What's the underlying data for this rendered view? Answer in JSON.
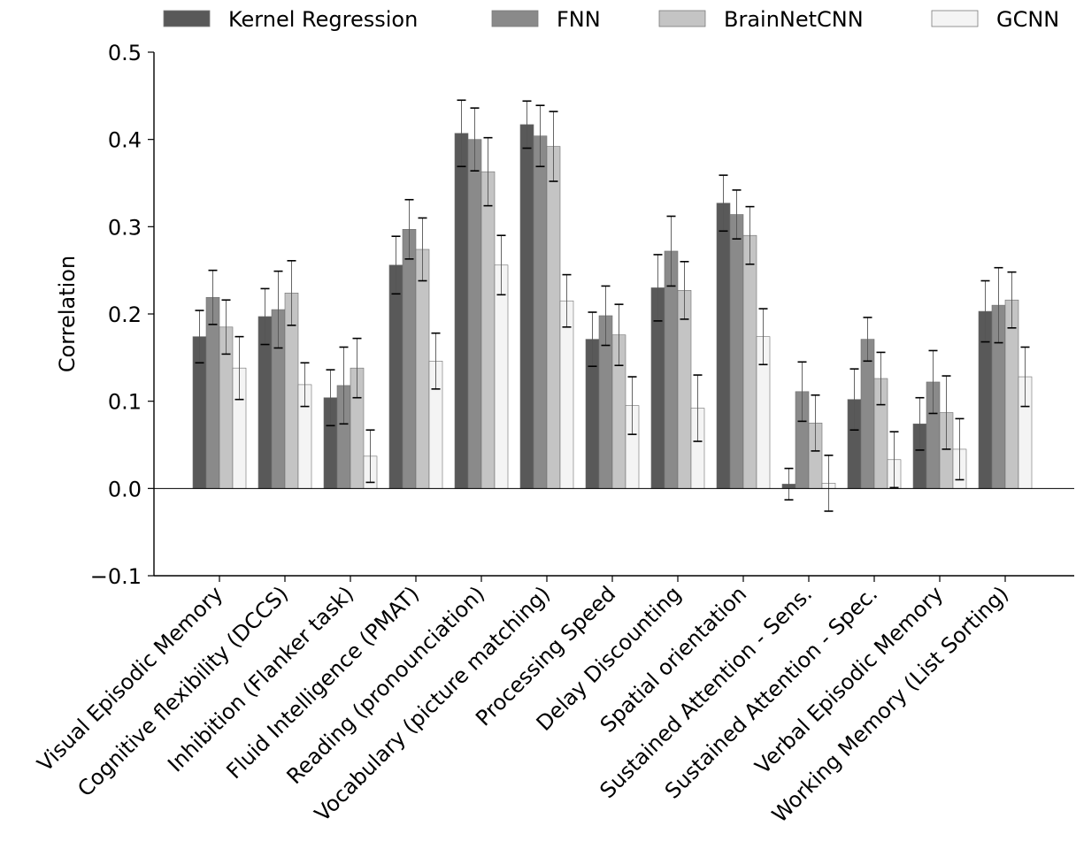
{
  "chart_data": {
    "type": "bar",
    "title": "",
    "xlabel": "",
    "ylabel": "Correlation",
    "ylim": [
      -0.1,
      0.5
    ],
    "yticks": [
      -0.1,
      0.0,
      0.1,
      0.2,
      0.3,
      0.4,
      0.5
    ],
    "ytick_labels": [
      "−0.1",
      "0.0",
      "0.1",
      "0.2",
      "0.3",
      "0.4",
      "0.5"
    ],
    "grid": false,
    "legend_position": "top",
    "categories": [
      "Visual Episodic Memory",
      "Cognitive flexibility (DCCS)",
      "Inhibition (Flanker task)",
      "Fluid Intelligence (PMAT)",
      "Reading (pronounciation)",
      "Vocabulary (picture matching)",
      "Processing Speed",
      "Delay Discounting",
      "Spatial orientation",
      "Sustained Attention - Sens.",
      "Sustained Attention - Spec.",
      "Verbal Episodic Memory",
      "Working Memory (List Sorting)"
    ],
    "series": [
      {
        "name": "Kernel Regression",
        "color": "#595959",
        "values": [
          0.174,
          0.197,
          0.104,
          0.256,
          0.407,
          0.417,
          0.171,
          0.23,
          0.327,
          0.005,
          0.102,
          0.074,
          0.203
        ],
        "errors": [
          0.03,
          0.032,
          0.032,
          0.033,
          0.038,
          0.027,
          0.031,
          0.038,
          0.032,
          0.018,
          0.035,
          0.03,
          0.035
        ]
      },
      {
        "name": "FNN",
        "color": "#8a8a8a",
        "values": [
          0.219,
          0.205,
          0.118,
          0.297,
          0.4,
          0.404,
          0.198,
          0.272,
          0.314,
          0.111,
          0.171,
          0.122,
          0.21
        ],
        "errors": [
          0.031,
          0.044,
          0.044,
          0.034,
          0.036,
          0.035,
          0.034,
          0.04,
          0.028,
          0.034,
          0.025,
          0.036,
          0.043
        ]
      },
      {
        "name": "BrainNetCNN",
        "color": "#c4c4c4",
        "values": [
          0.185,
          0.224,
          0.138,
          0.274,
          0.363,
          0.392,
          0.176,
          0.227,
          0.29,
          0.075,
          0.126,
          0.087,
          0.216
        ],
        "errors": [
          0.031,
          0.037,
          0.034,
          0.036,
          0.039,
          0.04,
          0.035,
          0.033,
          0.033,
          0.032,
          0.03,
          0.042,
          0.032
        ]
      },
      {
        "name": "GCNN",
        "color": "#f4f4f4",
        "values": [
          0.138,
          0.119,
          0.037,
          0.146,
          0.256,
          0.215,
          0.095,
          0.092,
          0.174,
          0.006,
          0.033,
          0.045,
          0.128
        ],
        "errors": [
          0.036,
          0.025,
          0.03,
          0.032,
          0.034,
          0.03,
          0.033,
          0.038,
          0.032,
          0.032,
          0.032,
          0.035,
          0.034
        ]
      }
    ]
  }
}
